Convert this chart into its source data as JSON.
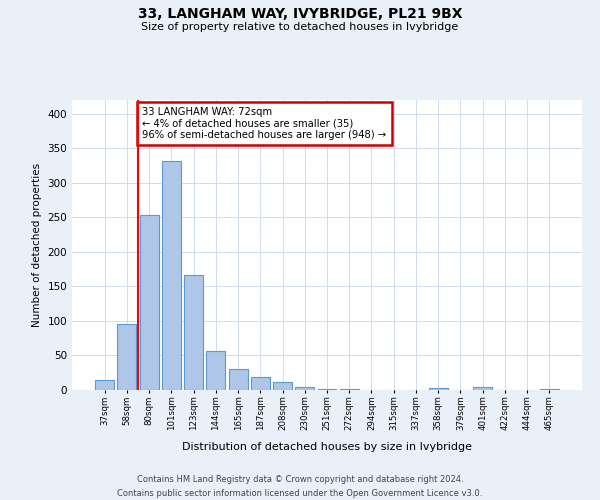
{
  "title": "33, LANGHAM WAY, IVYBRIDGE, PL21 9BX",
  "subtitle": "Size of property relative to detached houses in Ivybridge",
  "xlabel": "Distribution of detached houses by size in Ivybridge",
  "ylabel": "Number of detached properties",
  "bar_labels": [
    "37sqm",
    "58sqm",
    "80sqm",
    "101sqm",
    "123sqm",
    "144sqm",
    "165sqm",
    "187sqm",
    "208sqm",
    "230sqm",
    "251sqm",
    "272sqm",
    "294sqm",
    "315sqm",
    "337sqm",
    "358sqm",
    "379sqm",
    "401sqm",
    "422sqm",
    "444sqm",
    "465sqm"
  ],
  "bar_values": [
    15,
    95,
    253,
    332,
    167,
    57,
    30,
    19,
    12,
    5,
    2,
    1,
    0,
    0,
    0,
    3,
    0,
    5,
    0,
    0,
    2
  ],
  "bar_color": "#aec6e8",
  "bar_edge_color": "#5b9bd5",
  "red_line_x": 1.5,
  "annotation_title": "33 LANGHAM WAY: 72sqm",
  "annotation_line1": "← 4% of detached houses are smaller (35)",
  "annotation_line2": "96% of semi-detached houses are larger (948) →",
  "annotation_box_color": "#ffffff",
  "annotation_box_edge": "#cc0000",
  "ylim": [
    0,
    420
  ],
  "yticks": [
    0,
    50,
    100,
    150,
    200,
    250,
    300,
    350,
    400
  ],
  "footer_line1": "Contains HM Land Registry data © Crown copyright and database right 2024.",
  "footer_line2": "Contains public sector information licensed under the Open Government Licence v3.0.",
  "bg_color": "#eaf0f8",
  "plot_bg_color": "#ffffff"
}
